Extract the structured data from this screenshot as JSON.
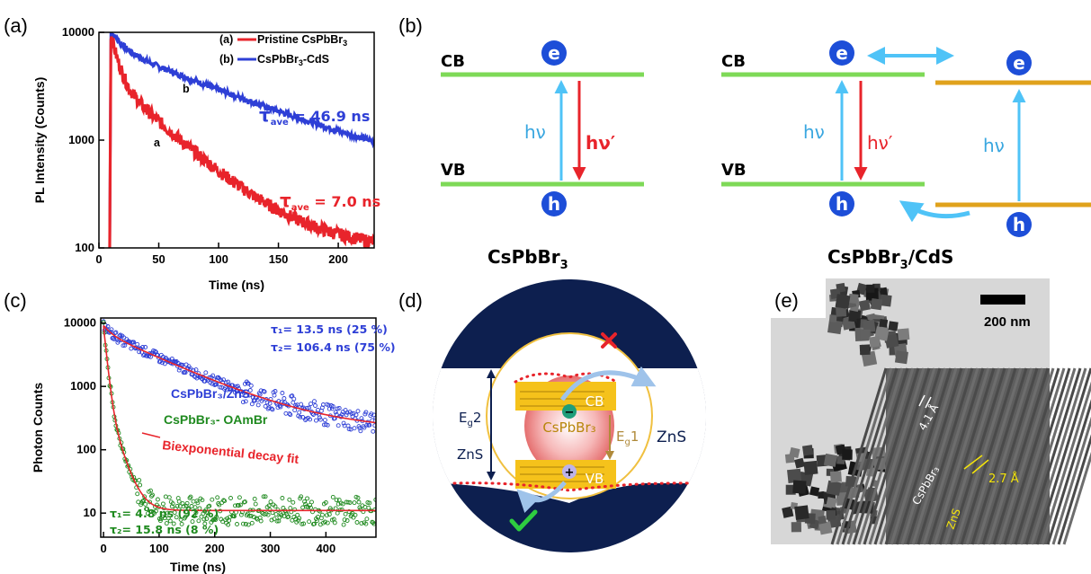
{
  "panel_labels": {
    "a": "(a)",
    "b": "(b)",
    "c": "(c)",
    "d": "(d)",
    "e": "(e)"
  },
  "colors": {
    "red": "#e8242b",
    "blue": "#2e3fd6",
    "green": "#1f8a1f",
    "cb_line": "#7ed957",
    "cds_line": "#e0a21c",
    "arrow_blue": "#4fc3f7",
    "arrow_red": "#e8242b",
    "circle": "#1d4ed8",
    "navy": "#0d1f4f",
    "gold": "#f5c21b"
  },
  "panel_a": {
    "title_y": "PL Intensity (Counts)",
    "title_x": "Time (ns)",
    "yticks": [
      "100",
      "1000",
      "10000"
    ],
    "xticks": [
      "0",
      "50",
      "100",
      "150",
      "200"
    ],
    "legend": [
      {
        "key": "(a)",
        "name": "Pristine CsPbBr",
        "sub": "3"
      },
      {
        "key": "(b)",
        "name": "CsPbBr",
        "sub": "3",
        "suffix": "-CdS"
      }
    ],
    "curve_label_a": "a",
    "curve_label_b": "b",
    "tau_b": "τ",
    "tau_b_sub": "ave",
    "tau_b_val": " = 46.9 ns",
    "tau_a": "τ",
    "tau_a_sub": "ave",
    "tau_a_val": " = 7.0 ns"
  },
  "panel_b": {
    "cb": "CB",
    "vb": "VB",
    "e": "e",
    "h": "h",
    "hv": "hν",
    "hv_prime": "hν′",
    "left_name": "CsPbBr",
    "left_sub": "3",
    "right_name": "CsPbBr",
    "right_sub": "3",
    "right_suffix": "/CdS"
  },
  "panel_c": {
    "title_y": "Photon Counts",
    "title_x": "Time (ns)",
    "yticks": [
      "10",
      "100",
      "1000",
      "10000"
    ],
    "xticks": [
      "0",
      "100",
      "200",
      "300",
      "400"
    ],
    "tau1_top": "τ₁=  13.5 ns (25 %)",
    "tau2_top": "τ₂= 106.4 ns (75 %)",
    "label_zns": "CsPbBr₃/ZnS",
    "label_oam": "CsPbBr₃- OAmBr",
    "label_fit": "Biexponential decay fit",
    "tau1_bot": "τ₁=   4.8 ns (92 %)",
    "tau2_bot": "τ₂= 15.8 ns (8 %)"
  },
  "panel_d": {
    "cb": "CB",
    "vb": "VB",
    "core": "CsPbBr₃",
    "eg1": "E",
    "eg1_sub": "g",
    "eg1_suf": "1",
    "eg2": "E",
    "eg2_sub": "g",
    "eg2_suf": "2",
    "zns_left": "ZnS",
    "zns_right": "ZnS",
    "minus": "−",
    "plus": "+"
  },
  "panel_e": {
    "scale": "200 nm",
    "d1": "4.1 Å",
    "d2": "2.7 Å",
    "lbl_core": "CsPbBr₃",
    "lbl_shell": "ZnS"
  }
}
